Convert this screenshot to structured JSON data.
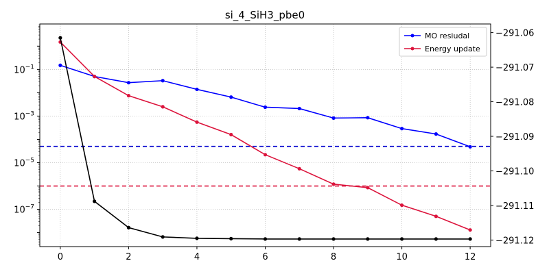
{
  "chart_data": {
    "type": "line",
    "title": "si_4_SiH3_pbe0",
    "xlabel": "",
    "ylabel_left": "",
    "ylabel_right": "",
    "x": [
      0,
      1,
      2,
      3,
      4,
      5,
      6,
      7,
      8,
      9,
      10,
      11,
      12
    ],
    "x_ticks": [
      0,
      2,
      4,
      6,
      8,
      10,
      12
    ],
    "xlim": [
      -0.6,
      12.6
    ],
    "left_axis": {
      "scale": "log",
      "ylim_log10": [
        -8.6,
        0.95
      ],
      "ticks": [
        {
          "exp": -7,
          "base": "10",
          "power": "−7"
        },
        {
          "exp": -5,
          "base": "10",
          "power": "−5"
        },
        {
          "exp": -3,
          "base": "10",
          "power": "−3"
        },
        {
          "exp": -1,
          "base": "10",
          "power": "−1"
        }
      ]
    },
    "right_axis": {
      "scale": "linear",
      "ylim": [
        -291.1219,
        -291.0575
      ],
      "ticks": [
        -291.06,
        -291.07,
        -291.08,
        -291.09,
        -291.1,
        -291.11,
        -291.12
      ],
      "tick_labels": [
        "−291.06",
        "−291.07",
        "−291.08",
        "−291.09",
        "−291.10",
        "−291.11",
        "−291.12"
      ]
    },
    "grid": true,
    "legend_position": "top-right",
    "series": [
      {
        "name": "MO resiudal",
        "axis": "left",
        "color": "#0000ff",
        "values": [
          0.15,
          0.05,
          0.027,
          0.033,
          0.014,
          0.0065,
          0.0024,
          0.0021,
          0.00082,
          0.00085,
          0.00029,
          0.00017,
          4.8e-05
        ]
      },
      {
        "name": "Energy update",
        "axis": "left",
        "color": "#dc143c",
        "values": [
          1.5,
          0.05,
          0.0075,
          0.0025,
          0.00055,
          0.00016,
          2.2e-05,
          5.5e-06,
          1.2e-06,
          8.5e-07,
          1.5e-07,
          5e-08,
          1.3e-08
        ]
      },
      {
        "name": "",
        "axis": "right",
        "color": "#000000",
        "values": [
          -291.0615,
          -291.1088,
          -291.1164,
          -291.1191,
          -291.1195,
          -291.1196,
          -291.1197,
          -291.1197,
          -291.1197,
          -291.1197,
          -291.1197,
          -291.1197,
          -291.1197
        ]
      }
    ],
    "hlines": [
      {
        "axis": "left",
        "value": 5e-05,
        "color": "#0000cd"
      },
      {
        "axis": "left",
        "value": 1e-06,
        "color": "#dc143c"
      }
    ]
  }
}
